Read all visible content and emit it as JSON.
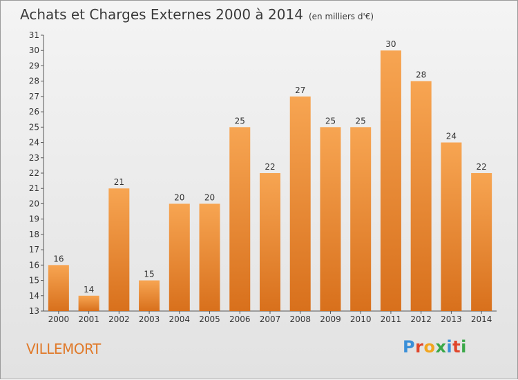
{
  "header": {
    "title": "Achats et Charges Externes 2000 à 2014",
    "unit": "(en milliers d'€)"
  },
  "footer": {
    "town": "VILLEMORT",
    "brand": "Proxiti"
  },
  "colors": {
    "bar_top": "#f7a552",
    "bar_bottom": "#d8701c",
    "town": "#e07a2a"
  },
  "chart_data": {
    "type": "bar",
    "title": "Achats et Charges Externes 2000 à 2014",
    "subtitle": "(en milliers d'€)",
    "categories": [
      "2000",
      "2001",
      "2002",
      "2003",
      "2004",
      "2005",
      "2006",
      "2007",
      "2008",
      "2009",
      "2010",
      "2011",
      "2012",
      "2013",
      "2014"
    ],
    "values": [
      16,
      14,
      21,
      15,
      20,
      20,
      25,
      22,
      27,
      25,
      25,
      30,
      28,
      24,
      22
    ],
    "ylim": [
      13,
      31
    ],
    "yticks": [
      13,
      14,
      15,
      16,
      17,
      18,
      19,
      20,
      21,
      22,
      23,
      24,
      25,
      26,
      27,
      28,
      29,
      30,
      31
    ],
    "grid": false,
    "data_labels": true
  }
}
